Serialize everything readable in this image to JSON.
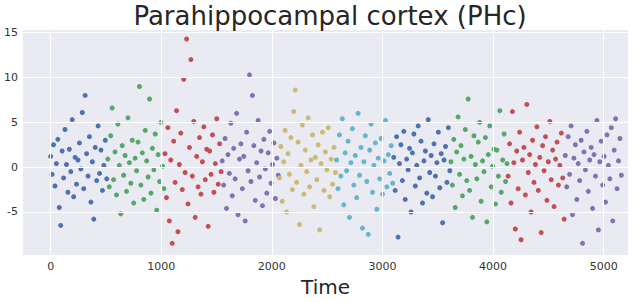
{
  "chart_data": {
    "type": "scatter",
    "title": "Parahippocampal cortex (PHc)",
    "x_label": "Time",
    "xlim": [
      -250,
      5220
    ],
    "xticks": [
      0,
      1000,
      2000,
      3000,
      4000,
      5000
    ],
    "ylim": [
      -9.8,
      15.3
    ],
    "yticks": [
      -5,
      0,
      5,
      10,
      15
    ],
    "grid": true,
    "marker": "circle",
    "series": [
      {
        "color": "#4c72b0",
        "x": [
          0,
          13,
          26,
          39,
          52,
          65,
          78,
          91,
          104,
          117,
          130,
          143,
          156,
          169,
          182,
          195,
          208,
          221,
          234,
          247,
          260,
          273,
          286,
          299,
          312,
          325,
          338,
          351,
          364,
          377,
          390,
          403,
          416,
          429,
          442,
          455,
          468,
          481,
          494,
          507
        ],
        "values": [
          1.2,
          -0.8,
          2.5,
          -2.1,
          0.4,
          3.1,
          -4.5,
          -6.5,
          1.8,
          -1.2,
          4.2,
          0.3,
          -2.8,
          2.0,
          -0.5,
          5.3,
          -3.3,
          1.1,
          -1.9,
          0.8,
          2.7,
          -0.2,
          6.1,
          -2.4,
          8.0,
          1.5,
          -1.0,
          3.4,
          -3.9,
          0.6,
          -5.8,
          2.2,
          -1.5,
          4.6,
          -0.7,
          1.9,
          -2.6,
          0.2,
          3.0,
          -1.3
        ]
      },
      {
        "color": "#55a868",
        "x": [
          517,
          530,
          543,
          556,
          569,
          582,
          595,
          608,
          621,
          634,
          647,
          660,
          673,
          686,
          699,
          712,
          725,
          738,
          751,
          764,
          777,
          790,
          803,
          816,
          829,
          842,
          855,
          868,
          881,
          894,
          907,
          920,
          933,
          946,
          959,
          972,
          985,
          998,
          1011,
          1024
        ],
        "values": [
          0.9,
          -2.2,
          3.5,
          6.6,
          -1.4,
          1.7,
          -3.1,
          4.8,
          0.2,
          -5.2,
          2.4,
          -0.9,
          1.3,
          -2.7,
          5.5,
          0.5,
          -1.8,
          3.0,
          -4.0,
          1.0,
          -0.4,
          2.8,
          9.0,
          -2.0,
          1.6,
          -3.6,
          4.1,
          0.7,
          -1.1,
          7.6,
          -2.9,
          2.1,
          -0.3,
          3.7,
          -4.8,
          1.4,
          -1.6,
          5.0,
          0.1,
          -2.4
        ]
      },
      {
        "color": "#c44e52",
        "x": [
          1034,
          1047,
          1060,
          1073,
          1086,
          1099,
          1112,
          1125,
          1138,
          1151,
          1164,
          1177,
          1190,
          1203,
          1216,
          1229,
          1242,
          1255,
          1268,
          1281,
          1294,
          1307,
          1320,
          1333,
          1346,
          1359,
          1372,
          1385,
          1398,
          1411,
          1424,
          1437,
          1450,
          1463,
          1476,
          1489,
          1502,
          1515,
          1528,
          1541
        ],
        "values": [
          1.5,
          -3.4,
          4.4,
          -6.0,
          0.8,
          -8.5,
          2.9,
          -1.7,
          6.3,
          -7.2,
          0.3,
          3.8,
          -2.5,
          9.8,
          -0.6,
          14.3,
          -4.1,
          2.2,
          12.0,
          -1.0,
          5.1,
          -5.6,
          1.2,
          -2.2,
          3.3,
          -3.0,
          0.6,
          4.5,
          -1.4,
          2.0,
          -6.6,
          1.8,
          -0.8,
          3.6,
          -2.8,
          0.4,
          5.4,
          -1.9,
          2.6,
          -0.5
        ]
      },
      {
        "color": "#8172b2",
        "x": [
          1551,
          1564,
          1577,
          1590,
          1603,
          1616,
          1629,
          1642,
          1655,
          1668,
          1681,
          1694,
          1707,
          1720,
          1733,
          1746,
          1759,
          1772,
          1785,
          1798,
          1811,
          1824,
          1837,
          1850,
          1863,
          1876,
          1889,
          1902,
          1915,
          1928,
          1941,
          1954,
          1967,
          1980,
          1993,
          2006,
          2019,
          2032,
          2045,
          2058
        ],
        "values": [
          0.7,
          -2.0,
          3.2,
          -4.6,
          1.4,
          -0.7,
          4.9,
          -3.2,
          2.1,
          -1.3,
          6.0,
          -5.3,
          0.9,
          2.6,
          -2.4,
          1.2,
          -6.0,
          3.9,
          -0.4,
          10.3,
          -1.6,
          8.0,
          2.4,
          -3.7,
          0.5,
          5.2,
          -1.1,
          1.8,
          -4.3,
          3.1,
          -0.2,
          -2.9,
          1.6,
          4.0,
          -1.8,
          0.3,
          2.7,
          -3.5,
          1.0,
          -0.9
        ]
      },
      {
        "color": "#ccb974",
        "x": [
          2068,
          2081,
          2094,
          2107,
          2120,
          2133,
          2146,
          2159,
          2172,
          2185,
          2198,
          2211,
          2224,
          2237,
          2250,
          2263,
          2276,
          2289,
          2302,
          2315,
          2328,
          2341,
          2354,
          2367,
          2380,
          2393,
          2406,
          2419,
          2432,
          2445,
          2458,
          2471,
          2484,
          2497,
          2510,
          2523,
          2536,
          2549,
          2562,
          2575
        ],
        "values": [
          -1.2,
          2.3,
          -3.8,
          0.6,
          4.1,
          -5.0,
          1.5,
          -0.8,
          3.3,
          -2.5,
          6.2,
          8.6,
          -1.7,
          2.8,
          -6.4,
          0.2,
          4.7,
          -3.0,
          1.9,
          -0.5,
          5.5,
          -2.2,
          0.8,
          3.6,
          -4.4,
          1.1,
          -1.4,
          2.5,
          -7.0,
          0.4,
          3.9,
          -2.6,
          1.7,
          -0.3,
          4.4,
          -3.3,
          0.9,
          -1.9,
          2.2,
          -0.6
        ]
      },
      {
        "color": "#64b5cd",
        "x": [
          2585,
          2598,
          2611,
          2624,
          2637,
          2650,
          2663,
          2676,
          2689,
          2702,
          2715,
          2728,
          2741,
          2754,
          2767,
          2780,
          2793,
          2806,
          2819,
          2832,
          2845,
          2858,
          2871,
          2884,
          2897,
          2910,
          2923,
          2936,
          2949,
          2962,
          2975,
          2988,
          3001,
          3014,
          3027,
          3040,
          3053,
          3066,
          3079,
          3092
        ],
        "values": [
          0.8,
          -2.4,
          3.6,
          -1.0,
          5.4,
          -4.2,
          1.6,
          -0.4,
          2.9,
          -5.6,
          0.5,
          4.3,
          -2.0,
          1.3,
          -3.4,
          6.0,
          -0.9,
          2.2,
          -6.8,
          0.6,
          3.5,
          -1.6,
          -7.5,
          1.9,
          4.8,
          -2.8,
          0.2,
          2.7,
          -4.7,
          1.0,
          -1.3,
          3.2,
          -3.0,
          0.7,
          5.2,
          -2.2,
          1.4,
          -0.7,
          2.4,
          -1.8
        ]
      },
      {
        "color": "#4c72b0",
        "x": [
          3102,
          3115,
          3128,
          3141,
          3154,
          3167,
          3180,
          3193,
          3206,
          3219,
          3232,
          3245,
          3258,
          3271,
          3284,
          3297,
          3310,
          3323,
          3336,
          3349,
          3362,
          3375,
          3388,
          3401,
          3414,
          3427,
          3440,
          3453,
          3466,
          3479,
          3492,
          3505,
          3518,
          3531,
          3544,
          3557,
          3570,
          3583,
          3596,
          3609
        ],
        "values": [
          1.1,
          -2.6,
          3.4,
          -7.8,
          0.4,
          2.5,
          -1.5,
          4.0,
          -3.6,
          0.9,
          -0.3,
          2.1,
          -5.0,
          1.6,
          3.7,
          -2.1,
          0.2,
          4.6,
          -1.2,
          2.9,
          -4.0,
          0.7,
          1.8,
          -2.9,
          5.3,
          -0.6,
          1.3,
          -3.3,
          2.6,
          -1.0,
          0.5,
          3.9,
          -2.3,
          1.5,
          -6.2,
          0.8,
          2.3,
          -1.7,
          4.4,
          -0.4
        ]
      },
      {
        "color": "#55a868",
        "x": [
          3619,
          3632,
          3645,
          3658,
          3671,
          3684,
          3697,
          3710,
          3723,
          3736,
          3749,
          3762,
          3775,
          3788,
          3801,
          3814,
          3827,
          3840,
          3853,
          3866,
          3879,
          3892,
          3905,
          3918,
          3931,
          3944,
          3957,
          3970,
          3983,
          3996,
          4009,
          4022,
          4035,
          4048,
          4061,
          4074,
          4087,
          4100,
          4113,
          4126
        ],
        "values": [
          0.6,
          -2.0,
          3.1,
          -4.5,
          1.7,
          5.6,
          -0.8,
          2.4,
          -3.2,
          0.9,
          4.2,
          -1.5,
          7.6,
          -2.6,
          1.2,
          -5.6,
          3.5,
          0.3,
          -1.3,
          2.8,
          5.0,
          -3.8,
          0.7,
          -0.5,
          3.3,
          -6.1,
          1.4,
          4.6,
          -2.2,
          0.1,
          2.0,
          -4.1,
          1.9,
          -1.0,
          6.3,
          -2.8,
          0.8,
          3.7,
          -1.6,
          0.4
        ]
      },
      {
        "color": "#c44e52",
        "x": [
          4136,
          4149,
          4162,
          4175,
          4188,
          4201,
          4214,
          4227,
          4240,
          4253,
          4266,
          4279,
          4292,
          4305,
          4318,
          4331,
          4344,
          4357,
          4370,
          4383,
          4396,
          4409,
          4422,
          4435,
          4448,
          4461,
          4474,
          4487,
          4500,
          4513,
          4526,
          4539,
          4552,
          4565,
          4578,
          4591,
          4604,
          4617,
          4630,
          4643
        ],
        "values": [
          -1.0,
          2.6,
          -4.0,
          6.2,
          0.5,
          -6.9,
          1.8,
          -2.4,
          3.9,
          -8.1,
          0.8,
          2.2,
          -3.1,
          7.0,
          -0.6,
          1.4,
          -5.0,
          3.0,
          -1.7,
          0.3,
          4.5,
          -2.6,
          1.1,
          -7.3,
          2.4,
          -0.4,
          3.4,
          -3.7,
          0.6,
          5.1,
          -1.4,
          1.9,
          -4.4,
          0.9,
          2.8,
          -2.0,
          0.2,
          3.8,
          -1.2,
          -5.8
        ]
      },
      {
        "color": "#8172b2",
        "x": [
          4653,
          4666,
          4679,
          4692,
          4705,
          4718,
          4731,
          4744,
          4757,
          4770,
          4783,
          4796,
          4809,
          4822,
          4835,
          4848,
          4861,
          4874,
          4887,
          4900,
          4913,
          4926,
          4939,
          4952,
          4965,
          4978,
          4991,
          5004,
          5017,
          5030,
          5043,
          5056,
          5069,
          5082,
          5095,
          5108,
          5121,
          5134,
          5147,
          5160
        ],
        "values": [
          1.3,
          -2.2,
          3.4,
          -0.8,
          4.6,
          -5.3,
          1.0,
          2.5,
          -3.6,
          0.4,
          -1.5,
          3.0,
          -8.5,
          1.7,
          -0.3,
          4.0,
          -2.7,
          0.8,
          2.2,
          -4.6,
          1.4,
          -1.0,
          5.2,
          -7.0,
          0.6,
          2.9,
          -2.0,
          1.2,
          -3.9,
          3.6,
          0.2,
          -1.3,
          4.4,
          -6.0,
          1.9,
          5.4,
          -2.4,
          0.7,
          3.2,
          -0.9
        ]
      }
    ]
  }
}
